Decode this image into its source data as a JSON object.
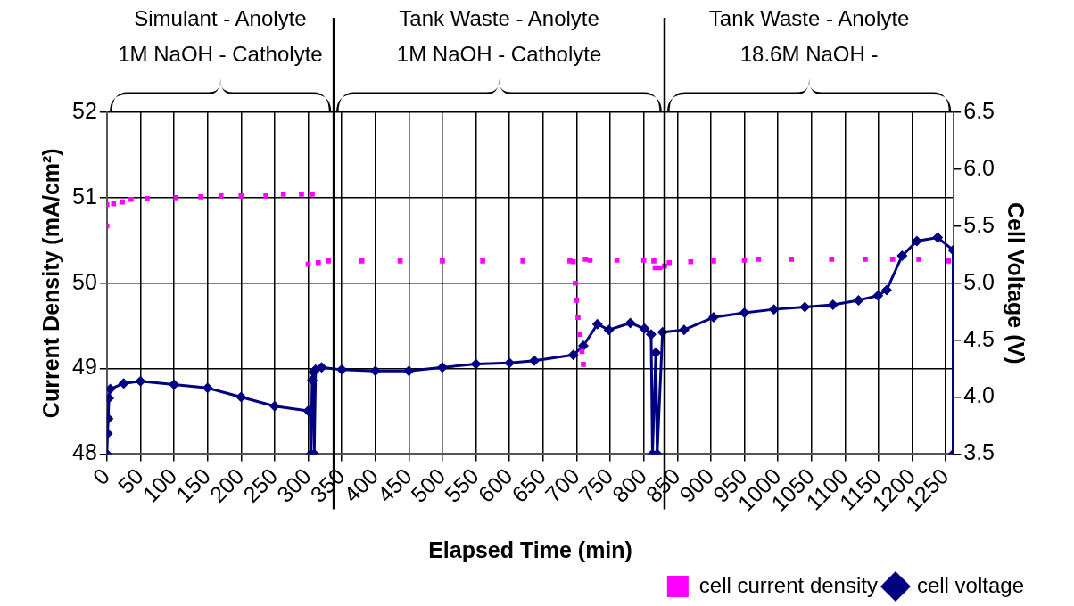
{
  "chart_data": {
    "type": "line",
    "xlabel": "Elapsed Time (min)",
    "ylabel": "Current Density (mA/cm²)",
    "y2label": "Cell Voltage (V)",
    "xlim": [
      0,
      1262
    ],
    "xticks": [
      0,
      50,
      100,
      150,
      200,
      250,
      300,
      350,
      400,
      450,
      500,
      550,
      600,
      650,
      700,
      750,
      800,
      850,
      900,
      950,
      1000,
      1050,
      1100,
      1150,
      1200,
      1250
    ],
    "ylim": [
      48,
      52
    ],
    "yticks": [
      48,
      49,
      50,
      51,
      52
    ],
    "y2lim": [
      3.5,
      6.5
    ],
    "y2ticks": [
      {
        "value": 3.5,
        "label": "3.5"
      },
      {
        "value": 4,
        "label": "4.0"
      },
      {
        "value": 4.5,
        "label": "4.5"
      },
      {
        "value": 5,
        "label": "5.0"
      },
      {
        "value": 5.5,
        "label": "5.5"
      },
      {
        "value": 6,
        "label": "6.0"
      },
      {
        "value": 6.5,
        "label": "6.5"
      }
    ],
    "grid": true,
    "legend": "bottom right",
    "ref_lines": [
      {
        "axis": "x",
        "value": 338,
        "color": "#000000"
      },
      {
        "axis": "x",
        "value": 831,
        "color": "#000000"
      }
    ],
    "annotations": [
      "Simulant - Anolyte\n1M NaOH - Catholyte",
      "Tank Waste - Anolyte\n1M NaOH - Catholyte",
      "Tank Waste - Anolyte\n18.6M NaOH -"
    ],
    "series": [
      {
        "name": "cell current density",
        "type": "scatter",
        "marker": "square",
        "color": "#ff00ff",
        "x": [
          0,
          0,
          10,
          23,
          36,
          60,
          103,
          140,
          170,
          200,
          237,
          263,
          290,
          306,
          300,
          315,
          330,
          380,
          437,
          500,
          560,
          620,
          690,
          695,
          698,
          700,
          702,
          705,
          708,
          710,
          713,
          720,
          760,
          800,
          815,
          817,
          824,
          831,
          838,
          870,
          904,
          950,
          971,
          1020,
          1080,
          1130,
          1171,
          1210,
          1254
        ],
        "values": [
          50.67,
          50.92,
          50.93,
          50.95,
          50.98,
          50.99,
          51.0,
          51.01,
          51.02,
          51.02,
          51.02,
          51.04,
          51.04,
          51.04,
          50.22,
          50.24,
          50.26,
          50.26,
          50.26,
          50.26,
          50.26,
          50.26,
          50.26,
          50.25,
          50.0,
          49.8,
          49.6,
          49.4,
          49.2,
          49.05,
          50.28,
          50.27,
          50.27,
          50.27,
          50.26,
          50.18,
          50.18,
          50.2,
          50.24,
          50.25,
          50.26,
          50.27,
          50.28,
          50.28,
          50.28,
          50.28,
          50.28,
          50.28,
          50.26
        ]
      },
      {
        "name": "cell voltage",
        "type": "line",
        "axis": "y2",
        "marker": "diamond",
        "line_style": "solid",
        "color": "#000080",
        "x": [
          0,
          1,
          2,
          3,
          5,
          25,
          50,
          100,
          150,
          200,
          250,
          300,
          303,
          304,
          306,
          308,
          309,
          311,
          320,
          350,
          400,
          450,
          500,
          550,
          600,
          637,
          695,
          710,
          731,
          748,
          780,
          801,
          811,
          813,
          818,
          820,
          828,
          860,
          904,
          950,
          994,
          1040,
          1082,
          1120,
          1149,
          1162,
          1185,
          1207,
          1238,
          1261,
          1261
        ],
        "values": [
          3.5,
          3.68,
          3.81,
          3.99,
          4.07,
          4.12,
          4.14,
          4.11,
          4.08,
          4.0,
          3.92,
          3.88,
          3.87,
          3.5,
          4.15,
          4.22,
          3.5,
          4.24,
          4.26,
          4.24,
          4.23,
          4.23,
          4.26,
          4.29,
          4.3,
          4.32,
          4.37,
          4.45,
          4.64,
          4.59,
          4.65,
          4.6,
          4.55,
          3.5,
          4.39,
          3.5,
          4.57,
          4.59,
          4.7,
          4.74,
          4.77,
          4.79,
          4.81,
          4.85,
          4.89,
          4.94,
          5.24,
          5.37,
          5.4,
          5.29,
          3.5
        ]
      }
    ]
  }
}
